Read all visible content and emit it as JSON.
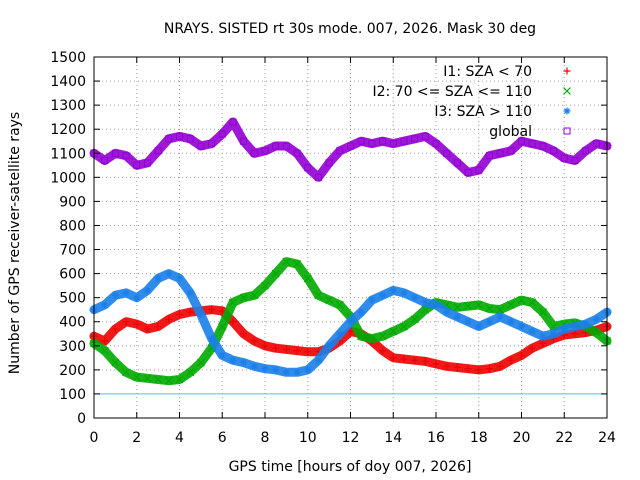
{
  "chart_data": {
    "type": "scatter",
    "title": "NRAYS. SISTED rt 30s mode. 007, 2026. Mask 30 deg",
    "xlabel": "GPS time [hours of doy 007, 2026]",
    "ylabel": "Number of GPS receiver-satellite rays",
    "xlim": [
      0,
      24
    ],
    "ylim": [
      0,
      1500
    ],
    "x_ticks": [
      0,
      2,
      4,
      6,
      8,
      10,
      12,
      14,
      16,
      18,
      20,
      22,
      24
    ],
    "y_ticks": [
      0,
      100,
      200,
      300,
      400,
      500,
      600,
      700,
      800,
      900,
      1000,
      1100,
      1200,
      1300,
      1400,
      1500
    ],
    "grid": true,
    "legend_position": "top-right",
    "reference_line": {
      "y": 100,
      "color": "#40d0e0"
    },
    "series": [
      {
        "name": "I1: SZA < 70",
        "marker": "+",
        "color": "#ee0000",
        "x": [
          0,
          0.5,
          1,
          1.5,
          2,
          2.5,
          3,
          3.5,
          4,
          4.5,
          5,
          5.5,
          6,
          6.5,
          7,
          7.5,
          8,
          8.5,
          9,
          9.5,
          10,
          10.5,
          11,
          11.5,
          12,
          12.5,
          13,
          13.5,
          14,
          14.5,
          15,
          15.5,
          16,
          16.5,
          17,
          17.5,
          18,
          18.5,
          19,
          19.5,
          20,
          20.5,
          21,
          21.5,
          22,
          22.5,
          23,
          23.5,
          24
        ],
        "y": [
          340,
          320,
          370,
          400,
          390,
          370,
          380,
          410,
          430,
          440,
          445,
          450,
          445,
          400,
          350,
          320,
          300,
          290,
          285,
          280,
          275,
          275,
          290,
          320,
          360,
          350,
          320,
          280,
          250,
          245,
          240,
          235,
          225,
          215,
          210,
          205,
          200,
          205,
          215,
          240,
          260,
          290,
          310,
          330,
          345,
          350,
          355,
          365,
          380
        ]
      },
      {
        "name": "I2: 70 <= SZA <= 110",
        "marker": "x",
        "color": "#00aa00",
        "x": [
          0,
          0.5,
          1,
          1.5,
          2,
          2.5,
          3,
          3.5,
          4,
          4.5,
          5,
          5.5,
          6,
          6.5,
          7,
          7.5,
          8,
          8.5,
          9,
          9.5,
          10,
          10.5,
          11,
          11.5,
          12,
          12.5,
          13,
          13.5,
          14,
          14.5,
          15,
          15.5,
          16,
          16.5,
          17,
          17.5,
          18,
          18.5,
          19,
          19.5,
          20,
          20.5,
          21,
          21.5,
          22,
          22.5,
          23,
          23.5,
          24
        ],
        "y": [
          310,
          280,
          230,
          190,
          170,
          165,
          160,
          155,
          160,
          190,
          230,
          290,
          380,
          480,
          500,
          510,
          550,
          600,
          650,
          640,
          580,
          510,
          490,
          470,
          420,
          340,
          330,
          340,
          360,
          380,
          410,
          450,
          480,
          470,
          460,
          465,
          470,
          455,
          450,
          470,
          490,
          480,
          440,
          380,
          390,
          395,
          380,
          355,
          320
        ]
      },
      {
        "name": "I3: SZA > 110",
        "marker": "*",
        "color": "#1a7fe8",
        "x": [
          0,
          0.5,
          1,
          1.5,
          2,
          2.5,
          3,
          3.5,
          4,
          4.5,
          5,
          5.5,
          6,
          6.5,
          7,
          7.5,
          8,
          8.5,
          9,
          9.5,
          10,
          10.5,
          11,
          11.5,
          12,
          12.5,
          13,
          13.5,
          14,
          14.5,
          15,
          15.5,
          16,
          16.5,
          17,
          17.5,
          18,
          18.5,
          19,
          19.5,
          20,
          20.5,
          21,
          21.5,
          22,
          22.5,
          23,
          23.5,
          24
        ],
        "y": [
          450,
          470,
          510,
          520,
          500,
          530,
          580,
          600,
          580,
          520,
          430,
          330,
          260,
          240,
          230,
          215,
          205,
          200,
          190,
          190,
          200,
          240,
          300,
          350,
          400,
          440,
          490,
          510,
          530,
          520,
          500,
          480,
          470,
          440,
          420,
          400,
          380,
          400,
          420,
          400,
          380,
          360,
          340,
          350,
          370,
          380,
          390,
          410,
          440
        ]
      },
      {
        "name": "global",
        "marker": "square",
        "color": "#9400d3",
        "x": [
          0,
          0.5,
          1,
          1.5,
          2,
          2.5,
          3,
          3.5,
          4,
          4.5,
          5,
          5.5,
          6,
          6.5,
          7,
          7.5,
          8,
          8.5,
          9,
          9.5,
          10,
          10.5,
          11,
          11.5,
          12,
          12.5,
          13,
          13.5,
          14,
          14.5,
          15,
          15.5,
          16,
          16.5,
          17,
          17.5,
          18,
          18.5,
          19,
          19.5,
          20,
          20.5,
          21,
          21.5,
          22,
          22.5,
          23,
          23.5,
          24
        ],
        "y": [
          1100,
          1070,
          1100,
          1090,
          1050,
          1060,
          1110,
          1160,
          1170,
          1160,
          1130,
          1140,
          1180,
          1230,
          1150,
          1100,
          1110,
          1130,
          1130,
          1100,
          1040,
          1000,
          1060,
          1110,
          1130,
          1150,
          1140,
          1150,
          1140,
          1150,
          1160,
          1170,
          1140,
          1100,
          1060,
          1020,
          1030,
          1090,
          1100,
          1110,
          1150,
          1140,
          1130,
          1110,
          1080,
          1070,
          1110,
          1140,
          1130
        ]
      }
    ]
  }
}
